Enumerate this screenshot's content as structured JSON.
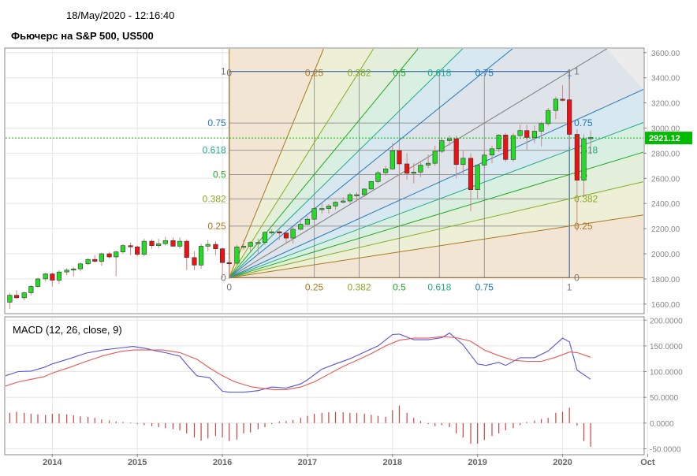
{
  "header": {
    "timestamp": "18/May/2020 - 12:16:40",
    "title": "Фьючерс на S&P 500, US500"
  },
  "colors": {
    "bull": "#22dd22",
    "bear": "#ee1111",
    "macd_line": "#5555dd",
    "signal_line": "#ee5555",
    "histogram": "#cc4444",
    "price_marker": "#00bb00",
    "grid": "#e6e6e6"
  },
  "chart_data": [
    {
      "type": "candlestick",
      "title": "",
      "x_ticks": [
        "2014",
        "2015",
        "2016",
        "2017",
        "2018",
        "2019",
        "2020",
        "Oct"
      ],
      "x_range": [
        2013.45,
        2020.95
      ],
      "y_ticks": [
        "1600.00",
        "1800.00",
        "2000.00",
        "2200.00",
        "2400.00",
        "2600.00",
        "2800.00",
        "3000.00",
        "3200.00",
        "3400.00",
        "3600.00"
      ],
      "ylim": [
        1530,
        3630
      ],
      "current_price": "2921.12",
      "current_price_value": 2921.12,
      "candles": [
        {
          "t": 2013.5,
          "o": 1615,
          "h": 1690,
          "l": 1560,
          "c": 1670
        },
        {
          "t": 2013.58,
          "o": 1670,
          "h": 1710,
          "l": 1640,
          "c": 1650
        },
        {
          "t": 2013.67,
          "o": 1650,
          "h": 1700,
          "l": 1630,
          "c": 1690
        },
        {
          "t": 2013.75,
          "o": 1690,
          "h": 1750,
          "l": 1670,
          "c": 1740
        },
        {
          "t": 2013.83,
          "o": 1740,
          "h": 1810,
          "l": 1730,
          "c": 1800
        },
        {
          "t": 2013.92,
          "o": 1800,
          "h": 1850,
          "l": 1780,
          "c": 1840
        },
        {
          "t": 2014.0,
          "o": 1840,
          "h": 1850,
          "l": 1740,
          "c": 1790
        },
        {
          "t": 2014.08,
          "o": 1790,
          "h": 1870,
          "l": 1760,
          "c": 1855
        },
        {
          "t": 2014.17,
          "o": 1855,
          "h": 1885,
          "l": 1830,
          "c": 1870
        },
        {
          "t": 2014.25,
          "o": 1870,
          "h": 1895,
          "l": 1820,
          "c": 1880
        },
        {
          "t": 2014.33,
          "o": 1880,
          "h": 1930,
          "l": 1860,
          "c": 1920
        },
        {
          "t": 2014.42,
          "o": 1920,
          "h": 1965,
          "l": 1910,
          "c": 1955
        },
        {
          "t": 2014.5,
          "o": 1955,
          "h": 1990,
          "l": 1930,
          "c": 1940
        },
        {
          "t": 2014.58,
          "o": 1940,
          "h": 2010,
          "l": 1905,
          "c": 2000
        },
        {
          "t": 2014.67,
          "o": 2000,
          "h": 2015,
          "l": 1960,
          "c": 1975
        },
        {
          "t": 2014.75,
          "o": 1975,
          "h": 2025,
          "l": 1820,
          "c": 2015
        },
        {
          "t": 2014.83,
          "o": 2015,
          "h": 2075,
          "l": 2000,
          "c": 2065
        },
        {
          "t": 2014.92,
          "o": 2065,
          "h": 2090,
          "l": 1990,
          "c": 2055
        },
        {
          "t": 2015.0,
          "o": 2055,
          "h": 2065,
          "l": 1980,
          "c": 1995
        },
        {
          "t": 2015.08,
          "o": 1995,
          "h": 2120,
          "l": 1980,
          "c": 2100
        },
        {
          "t": 2015.17,
          "o": 2100,
          "h": 2115,
          "l": 2040,
          "c": 2065
        },
        {
          "t": 2015.25,
          "o": 2065,
          "h": 2120,
          "l": 2045,
          "c": 2080
        },
        {
          "t": 2015.33,
          "o": 2080,
          "h": 2135,
          "l": 2065,
          "c": 2105
        },
        {
          "t": 2015.42,
          "o": 2105,
          "h": 2130,
          "l": 2060,
          "c": 2060
        },
        {
          "t": 2015.5,
          "o": 2060,
          "h": 2130,
          "l": 2040,
          "c": 2100
        },
        {
          "t": 2015.58,
          "o": 2100,
          "h": 2115,
          "l": 1870,
          "c": 1970
        },
        {
          "t": 2015.67,
          "o": 1970,
          "h": 2020,
          "l": 1870,
          "c": 1910
        },
        {
          "t": 2015.75,
          "o": 1910,
          "h": 2080,
          "l": 1880,
          "c": 2060
        },
        {
          "t": 2015.83,
          "o": 2060,
          "h": 2110,
          "l": 2020,
          "c": 2075
        },
        {
          "t": 2015.92,
          "o": 2075,
          "h": 2100,
          "l": 1990,
          "c": 2040
        },
        {
          "t": 2016.0,
          "o": 2040,
          "h": 2050,
          "l": 1810,
          "c": 1930
        },
        {
          "t": 2016.08,
          "o": 1930,
          "h": 1960,
          "l": 1800,
          "c": 1925
        },
        {
          "t": 2016.17,
          "o": 1925,
          "h": 2070,
          "l": 1910,
          "c": 2055
        },
        {
          "t": 2016.25,
          "o": 2055,
          "h": 2110,
          "l": 2030,
          "c": 2060
        },
        {
          "t": 2016.33,
          "o": 2060,
          "h": 2100,
          "l": 2020,
          "c": 2090
        },
        {
          "t": 2016.42,
          "o": 2090,
          "h": 2120,
          "l": 1990,
          "c": 2090
        },
        {
          "t": 2016.5,
          "o": 2090,
          "h": 2180,
          "l": 2070,
          "c": 2170
        },
        {
          "t": 2016.58,
          "o": 2170,
          "h": 2195,
          "l": 2150,
          "c": 2175
        },
        {
          "t": 2016.67,
          "o": 2175,
          "h": 2190,
          "l": 2110,
          "c": 2165
        },
        {
          "t": 2016.75,
          "o": 2165,
          "h": 2175,
          "l": 2080,
          "c": 2125
        },
        {
          "t": 2016.83,
          "o": 2125,
          "h": 2215,
          "l": 2080,
          "c": 2195
        },
        {
          "t": 2016.92,
          "o": 2195,
          "h": 2280,
          "l": 2185,
          "c": 2235
        },
        {
          "t": 2017.0,
          "o": 2235,
          "h": 2300,
          "l": 2230,
          "c": 2275
        },
        {
          "t": 2017.08,
          "o": 2275,
          "h": 2400,
          "l": 2270,
          "c": 2360
        },
        {
          "t": 2017.17,
          "o": 2360,
          "h": 2400,
          "l": 2320,
          "c": 2360
        },
        {
          "t": 2017.25,
          "o": 2360,
          "h": 2395,
          "l": 2320,
          "c": 2380
        },
        {
          "t": 2017.33,
          "o": 2380,
          "h": 2420,
          "l": 2350,
          "c": 2410
        },
        {
          "t": 2017.42,
          "o": 2410,
          "h": 2450,
          "l": 2400,
          "c": 2420
        },
        {
          "t": 2017.5,
          "o": 2420,
          "h": 2485,
          "l": 2400,
          "c": 2470
        },
        {
          "t": 2017.58,
          "o": 2470,
          "h": 2490,
          "l": 2415,
          "c": 2470
        },
        {
          "t": 2017.67,
          "o": 2470,
          "h": 2520,
          "l": 2450,
          "c": 2515
        },
        {
          "t": 2017.75,
          "o": 2515,
          "h": 2580,
          "l": 2510,
          "c": 2575
        },
        {
          "t": 2017.83,
          "o": 2575,
          "h": 2660,
          "l": 2560,
          "c": 2645
        },
        {
          "t": 2017.92,
          "o": 2645,
          "h": 2700,
          "l": 2620,
          "c": 2675
        },
        {
          "t": 2018.0,
          "o": 2675,
          "h": 2880,
          "l": 2670,
          "c": 2820
        },
        {
          "t": 2018.08,
          "o": 2820,
          "h": 2800,
          "l": 2530,
          "c": 2715
        },
        {
          "t": 2018.17,
          "o": 2715,
          "h": 2800,
          "l": 2590,
          "c": 2640
        },
        {
          "t": 2018.25,
          "o": 2640,
          "h": 2720,
          "l": 2560,
          "c": 2650
        },
        {
          "t": 2018.33,
          "o": 2650,
          "h": 2740,
          "l": 2610,
          "c": 2705
        },
        {
          "t": 2018.42,
          "o": 2705,
          "h": 2790,
          "l": 2680,
          "c": 2720
        },
        {
          "t": 2018.5,
          "o": 2720,
          "h": 2860,
          "l": 2700,
          "c": 2815
        },
        {
          "t": 2018.58,
          "o": 2815,
          "h": 2920,
          "l": 2800,
          "c": 2900
        },
        {
          "t": 2018.67,
          "o": 2900,
          "h": 2940,
          "l": 2860,
          "c": 2915
        },
        {
          "t": 2018.75,
          "o": 2915,
          "h": 2940,
          "l": 2600,
          "c": 2710
        },
        {
          "t": 2018.83,
          "o": 2710,
          "h": 2820,
          "l": 2630,
          "c": 2760
        },
        {
          "t": 2018.92,
          "o": 2760,
          "h": 2800,
          "l": 2340,
          "c": 2510
        },
        {
          "t": 2019.0,
          "o": 2510,
          "h": 2710,
          "l": 2440,
          "c": 2705
        },
        {
          "t": 2019.08,
          "o": 2705,
          "h": 2820,
          "l": 2680,
          "c": 2785
        },
        {
          "t": 2019.17,
          "o": 2785,
          "h": 2860,
          "l": 2720,
          "c": 2835
        },
        {
          "t": 2019.25,
          "o": 2835,
          "h": 2950,
          "l": 2810,
          "c": 2945
        },
        {
          "t": 2019.33,
          "o": 2945,
          "h": 2960,
          "l": 2730,
          "c": 2750
        },
        {
          "t": 2019.42,
          "o": 2750,
          "h": 2960,
          "l": 2730,
          "c": 2940
        },
        {
          "t": 2019.5,
          "o": 2940,
          "h": 3030,
          "l": 2920,
          "c": 2980
        },
        {
          "t": 2019.58,
          "o": 2980,
          "h": 3025,
          "l": 2820,
          "c": 2925
        },
        {
          "t": 2019.67,
          "o": 2925,
          "h": 3020,
          "l": 2880,
          "c": 2975
        },
        {
          "t": 2019.75,
          "o": 2975,
          "h": 3050,
          "l": 2855,
          "c": 3035
        },
        {
          "t": 2019.83,
          "o": 3035,
          "h": 3160,
          "l": 3020,
          "c": 3140
        },
        {
          "t": 2019.92,
          "o": 3140,
          "h": 3250,
          "l": 3070,
          "c": 3230
        },
        {
          "t": 2020.0,
          "o": 3230,
          "h": 3340,
          "l": 3210,
          "c": 3225
        },
        {
          "t": 2020.08,
          "o": 3225,
          "h": 3390,
          "l": 2850,
          "c": 2950
        },
        {
          "t": 2020.17,
          "o": 2950,
          "h": 2990,
          "l": 2180,
          "c": 2585
        },
        {
          "t": 2020.25,
          "o": 2585,
          "h": 2950,
          "l": 2450,
          "c": 2915
        },
        {
          "t": 2020.33,
          "o": 2915,
          "h": 2980,
          "l": 2790,
          "c": 2925
        }
      ],
      "fibonacci_fan": {
        "origin": {
          "t": 2016.08,
          "price": 1810
        },
        "corner": {
          "t": 2020.08,
          "price": 3450
        },
        "levels": [
          "0",
          "0.25",
          "0.382",
          "0.5",
          "0.618",
          "0.75",
          "1"
        ],
        "level_values": [
          0,
          0.25,
          0.382,
          0.5,
          0.618,
          0.75,
          1
        ],
        "line_colors": [
          "#aa7722",
          "#aa7722",
          "#88aa22",
          "#22aa22",
          "#22aa88",
          "#2277bb",
          "#888888"
        ],
        "fill_colors": [
          "#f3e4d2",
          "#edf1d5",
          "#e2f0d8",
          "#d7efe1",
          "#d5e8f1",
          "#dde3ea"
        ],
        "label_colors": [
          "#777777",
          "#aa7722",
          "#88aa22",
          "#22aa22",
          "#22aa88",
          "#2277bb",
          "#777777"
        ]
      }
    },
    {
      "type": "line",
      "title": "MACD (12, 26, close, 9)",
      "y_ticks": [
        "-50.0000",
        "0.0000",
        "50.0000",
        "100.0000",
        "150.0000",
        "200.0000"
      ],
      "ylim": [
        -60,
        205
      ],
      "series": [
        {
          "name": "MACD",
          "x": [
            2013.45,
            2013.6,
            2013.75,
            2013.9,
            2014.0,
            2014.2,
            2014.4,
            2014.6,
            2014.8,
            2014.95,
            2015.1,
            2015.2,
            2015.35,
            2015.5,
            2015.6,
            2015.7,
            2015.85,
            2016.0,
            2016.08,
            2016.25,
            2016.42,
            2016.58,
            2016.75,
            2016.92,
            2017.0,
            2017.17,
            2017.33,
            2017.5,
            2017.67,
            2017.83,
            2018.0,
            2018.08,
            2018.25,
            2018.42,
            2018.58,
            2018.67,
            2018.83,
            2019.0,
            2019.1,
            2019.25,
            2019.33,
            2019.5,
            2019.67,
            2019.83,
            2020.0,
            2020.08,
            2020.17,
            2020.33
          ],
          "values": [
            92,
            100,
            101,
            108,
            115,
            125,
            136,
            142,
            146,
            149,
            145,
            141,
            136,
            130,
            110,
            92,
            88,
            62,
            60,
            60,
            63,
            70,
            68,
            76,
            84,
            105,
            115,
            125,
            138,
            150,
            172,
            173,
            162,
            162,
            166,
            175,
            152,
            115,
            112,
            118,
            112,
            127,
            127,
            140,
            165,
            158,
            103,
            85
          ]
        },
        {
          "name": "Signal",
          "x": [
            2013.45,
            2013.6,
            2013.75,
            2013.9,
            2014.0,
            2014.2,
            2014.4,
            2014.6,
            2014.8,
            2014.95,
            2015.1,
            2015.3,
            2015.5,
            2015.7,
            2015.85,
            2016.0,
            2016.15,
            2016.35,
            2016.6,
            2016.75,
            2016.92,
            2017.08,
            2017.25,
            2017.42,
            2017.58,
            2017.75,
            2017.92,
            2018.08,
            2018.25,
            2018.42,
            2018.58,
            2018.75,
            2018.92,
            2019.08,
            2019.25,
            2019.42,
            2019.58,
            2019.75,
            2019.92,
            2020.08,
            2020.17,
            2020.33
          ],
          "values": [
            72,
            80,
            85,
            90,
            97,
            108,
            120,
            131,
            139,
            142,
            142,
            142,
            137,
            124,
            107,
            92,
            80,
            70,
            65,
            65,
            70,
            80,
            95,
            110,
            122,
            135,
            150,
            161,
            165,
            165,
            168,
            166,
            159,
            142,
            131,
            122,
            120,
            120,
            128,
            138,
            137,
            128
          ]
        }
      ],
      "histogram": {
        "x": [
          2013.5,
          2013.58,
          2013.67,
          2013.75,
          2013.83,
          2013.92,
          2014.0,
          2014.08,
          2014.17,
          2014.25,
          2014.33,
          2014.42,
          2014.5,
          2014.58,
          2014.67,
          2014.75,
          2014.83,
          2014.92,
          2015.0,
          2015.08,
          2015.17,
          2015.25,
          2015.33,
          2015.42,
          2015.5,
          2015.58,
          2015.67,
          2015.75,
          2015.83,
          2015.92,
          2016.0,
          2016.08,
          2016.17,
          2016.25,
          2016.33,
          2016.42,
          2016.5,
          2016.58,
          2016.67,
          2016.75,
          2016.83,
          2016.92,
          2017.0,
          2017.08,
          2017.17,
          2017.25,
          2017.33,
          2017.42,
          2017.5,
          2017.58,
          2017.67,
          2017.75,
          2017.83,
          2017.92,
          2018.0,
          2018.08,
          2018.17,
          2018.25,
          2018.33,
          2018.42,
          2018.5,
          2018.58,
          2018.67,
          2018.75,
          2018.83,
          2018.92,
          2019.0,
          2019.08,
          2019.17,
          2019.25,
          2019.33,
          2019.42,
          2019.5,
          2019.58,
          2019.67,
          2019.75,
          2019.83,
          2019.92,
          2020.0,
          2020.08,
          2020.17,
          2020.25,
          2020.33
        ],
        "values": [
          20,
          22,
          20,
          18,
          17,
          16,
          18,
          18,
          17,
          15,
          13,
          12,
          10,
          7,
          5,
          3,
          2,
          1,
          -2,
          -4,
          -6,
          -8,
          -10,
          -12,
          -14,
          -20,
          -28,
          -34,
          -30,
          -25,
          -28,
          -35,
          -32,
          -20,
          -18,
          -12,
          -8,
          -2,
          3,
          4,
          6,
          10,
          14,
          18,
          20,
          21,
          22,
          21,
          20,
          20,
          18,
          16,
          14,
          12,
          25,
          34,
          20,
          10,
          4,
          -2,
          -6,
          -4,
          -8,
          -20,
          -28,
          -40,
          -40,
          -33,
          -25,
          -20,
          -14,
          -10,
          -4,
          2,
          5,
          8,
          10,
          20,
          22,
          30,
          -5,
          -35,
          -46
        ]
      }
    }
  ]
}
